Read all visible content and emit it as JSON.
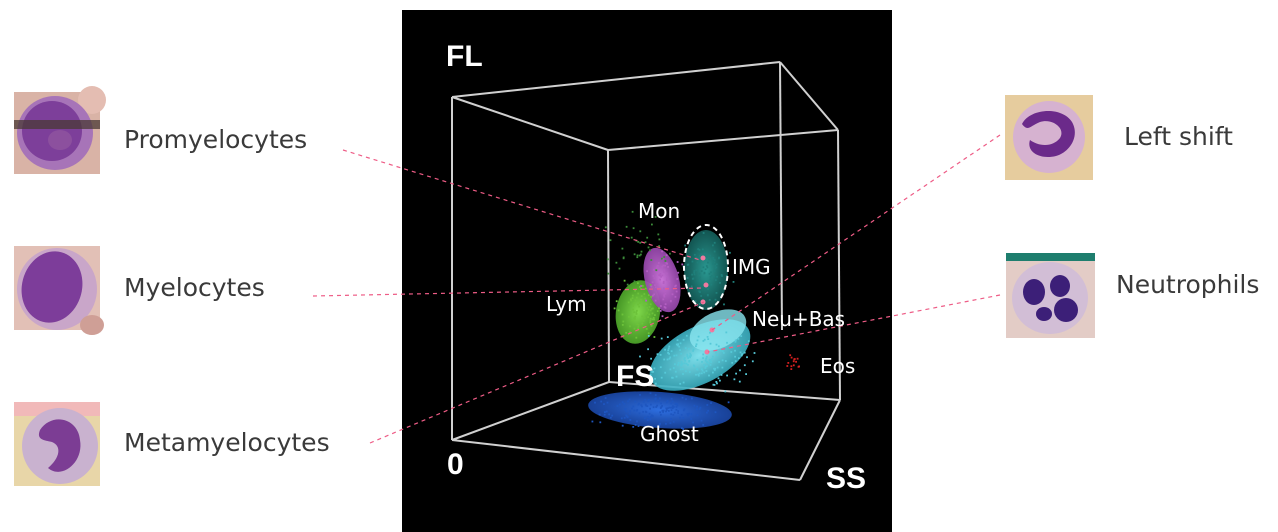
{
  "axes": {
    "fl": "FL",
    "ss": "SS",
    "fs": "FS",
    "origin": "0"
  },
  "clusters": {
    "mon": "Mon",
    "img": "IMG",
    "lym": "Lym",
    "neu_bas": "Neu+Bas",
    "eos": "Eos",
    "ghost": "Ghost"
  },
  "left_cells": [
    {
      "label": "Promyelocytes"
    },
    {
      "label": "Myelocytes"
    },
    {
      "label": "Metamyelocytes"
    }
  ],
  "right_cells": [
    {
      "label": "Left shift"
    },
    {
      "label": "Neutrophils"
    }
  ],
  "colors": {
    "mon": "#b35fc2",
    "img": "#1f7f7a",
    "lym": "#6cc23a",
    "neu": "#56c9d8",
    "ghost": "#1e56c0",
    "eos": "#d42020",
    "leader": "#ee5c86",
    "marker": "#f07aa0"
  }
}
